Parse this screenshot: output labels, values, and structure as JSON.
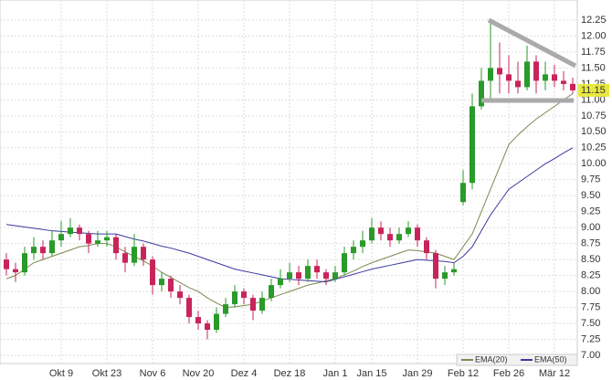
{
  "chart_data": {
    "type": "candlestick",
    "xticks": [
      {
        "value": 6,
        "label": "Okt 9"
      },
      {
        "value": 11,
        "label": "Okt 23"
      },
      {
        "value": 16,
        "label": "Nov 6"
      },
      {
        "value": 21,
        "label": "Nov 20"
      },
      {
        "value": 26,
        "label": "Dez 4"
      },
      {
        "value": 31,
        "label": "Dez 18"
      },
      {
        "value": 36,
        "label": "Jan 1"
      },
      {
        "value": 40,
        "label": "Jan 15"
      },
      {
        "value": 45,
        "label": "Jan 29"
      },
      {
        "value": 50,
        "label": "Feb 12"
      },
      {
        "value": 55,
        "label": "Feb 26"
      },
      {
        "value": 60,
        "label": "Mär 12"
      }
    ],
    "ylim": [
      7,
      12.5
    ],
    "yticks": [
      {
        "value": 7,
        "label": "7.00"
      },
      7.25,
      {
        "value": 7.5,
        "label": "7.50"
      },
      7.75,
      {
        "value": 8,
        "label": "8.00"
      },
      8.25,
      {
        "value": 8.5,
        "label": "8.50"
      },
      8.75,
      {
        "value": 9,
        "label": "9.00"
      },
      9.25,
      {
        "value": 9.5,
        "label": "9.50"
      },
      9.75,
      {
        "value": 10,
        "label": "10.00"
      },
      10.25,
      {
        "value": 10.5,
        "label": "10.50"
      },
      10.75,
      {
        "value": 11,
        "label": "11.00"
      },
      11.25,
      {
        "value": 11.5,
        "label": "11.50"
      },
      11.75,
      {
        "value": 12,
        "label": "12.00"
      },
      12.25
    ],
    "grid": true,
    "up_color": "#2a9a2a",
    "down_color": "#c8245a",
    "ohlc": [
      [
        8.5,
        8.6,
        8.25,
        8.35
      ],
      [
        8.35,
        8.45,
        8.15,
        8.3
      ],
      [
        8.3,
        8.7,
        8.25,
        8.6
      ],
      [
        8.6,
        8.85,
        8.5,
        8.7
      ],
      [
        8.7,
        8.8,
        8.5,
        8.6
      ],
      [
        8.6,
        8.95,
        8.55,
        8.8
      ],
      [
        8.8,
        9.1,
        8.7,
        8.9
      ],
      [
        8.9,
        9.15,
        8.85,
        9.0
      ],
      [
        9.0,
        9.05,
        8.8,
        8.9
      ],
      [
        8.9,
        8.95,
        8.6,
        8.75
      ],
      [
        8.75,
        8.95,
        8.7,
        8.8
      ],
      [
        8.8,
        8.95,
        8.7,
        8.85
      ],
      [
        8.85,
        8.9,
        8.5,
        8.6
      ],
      [
        8.6,
        8.7,
        8.3,
        8.45
      ],
      [
        8.45,
        8.9,
        8.4,
        8.7
      ],
      [
        8.7,
        8.75,
        8.4,
        8.5
      ],
      [
        8.5,
        8.55,
        7.95,
        8.1
      ],
      [
        8.1,
        8.3,
        8.0,
        8.2
      ],
      [
        8.2,
        8.25,
        7.9,
        8.0
      ],
      [
        8.0,
        8.1,
        7.8,
        7.9
      ],
      [
        7.9,
        7.95,
        7.5,
        7.6
      ],
      [
        7.6,
        7.7,
        7.4,
        7.5
      ],
      [
        7.5,
        7.55,
        7.25,
        7.4
      ],
      [
        7.4,
        7.75,
        7.35,
        7.65
      ],
      [
        7.65,
        7.9,
        7.6,
        7.8
      ],
      [
        7.8,
        8.1,
        7.75,
        8.0
      ],
      [
        8.0,
        8.05,
        7.8,
        7.9
      ],
      [
        7.9,
        7.95,
        7.55,
        7.7
      ],
      [
        7.7,
        8.0,
        7.65,
        7.9
      ],
      [
        7.9,
        8.2,
        7.85,
        8.1
      ],
      [
        8.1,
        8.35,
        8.05,
        8.2
      ],
      [
        8.2,
        8.45,
        8.15,
        8.3
      ],
      [
        8.3,
        8.4,
        8.1,
        8.2
      ],
      [
        8.2,
        8.5,
        8.15,
        8.4
      ],
      [
        8.4,
        8.5,
        8.2,
        8.3
      ],
      [
        8.3,
        8.35,
        8.1,
        8.2
      ],
      [
        8.2,
        8.4,
        8.15,
        8.3
      ],
      [
        8.3,
        8.7,
        8.25,
        8.6
      ],
      [
        8.6,
        8.8,
        8.5,
        8.7
      ],
      [
        8.7,
        8.95,
        8.6,
        8.8
      ],
      [
        8.8,
        9.15,
        8.75,
        9.0
      ],
      [
        9.0,
        9.1,
        8.8,
        8.9
      ],
      [
        8.9,
        9.0,
        8.7,
        8.8
      ],
      [
        8.8,
        9.0,
        8.75,
        8.9
      ],
      [
        8.9,
        9.1,
        8.85,
        9.0
      ],
      [
        9.0,
        9.05,
        8.7,
        8.8
      ],
      [
        8.8,
        8.85,
        8.5,
        8.6
      ],
      [
        8.6,
        8.65,
        8.05,
        8.2
      ],
      [
        8.2,
        8.4,
        8.1,
        8.3
      ],
      [
        8.3,
        8.45,
        8.25,
        8.35
      ],
      [
        9.4,
        9.9,
        9.35,
        9.7
      ],
      [
        9.7,
        11.1,
        9.6,
        10.9
      ],
      [
        10.9,
        11.5,
        10.85,
        11.3
      ],
      [
        11.3,
        12.25,
        11.0,
        11.5
      ],
      [
        11.5,
        11.9,
        11.1,
        11.4
      ],
      [
        11.4,
        11.7,
        11.1,
        11.3
      ],
      [
        11.3,
        11.6,
        11.1,
        11.2
      ],
      [
        11.2,
        11.85,
        11.15,
        11.6
      ],
      [
        11.6,
        11.7,
        11.1,
        11.3
      ],
      [
        11.3,
        11.6,
        11.15,
        11.4
      ],
      [
        11.4,
        11.55,
        11.2,
        11.3
      ],
      [
        11.3,
        11.45,
        11.15,
        11.25
      ],
      [
        11.25,
        11.35,
        11.1,
        11.15
      ]
    ],
    "series": [
      {
        "name": "EMA(20)",
        "color": "#7a8a50",
        "values": [
          8.2,
          8.25,
          8.35,
          8.45,
          8.5,
          8.55,
          8.6,
          8.65,
          8.7,
          8.72,
          8.75,
          8.75,
          8.7,
          8.62,
          8.55,
          8.48,
          8.4,
          8.3,
          8.22,
          8.14,
          8.06,
          8.0,
          7.9,
          7.82,
          7.75,
          7.76,
          7.78,
          7.8,
          7.85,
          7.9,
          7.95,
          8.0,
          8.05,
          8.1,
          8.13,
          8.17,
          8.2,
          8.26,
          8.32,
          8.39,
          8.45,
          8.5,
          8.55,
          8.6,
          8.65,
          8.64,
          8.62,
          8.6,
          8.55,
          8.5,
          8.7,
          8.9,
          9.25,
          9.6,
          9.95,
          10.3,
          10.45,
          10.58,
          10.7,
          10.8,
          10.9,
          11.0,
          11.1
        ]
      },
      {
        "name": "EMA(50)",
        "color": "#3a3aa0",
        "values": [
          9.05,
          9.03,
          9.01,
          8.99,
          8.97,
          8.95,
          8.94,
          8.93,
          8.92,
          8.91,
          8.9,
          8.9,
          8.9,
          8.86,
          8.82,
          8.79,
          8.75,
          8.71,
          8.68,
          8.64,
          8.6,
          8.55,
          8.5,
          8.45,
          8.4,
          8.35,
          8.32,
          8.29,
          8.26,
          8.23,
          8.2,
          8.19,
          8.18,
          8.17,
          8.16,
          8.15,
          8.19,
          8.23,
          8.27,
          8.31,
          8.35,
          8.38,
          8.41,
          8.44,
          8.47,
          8.5,
          8.49,
          8.48,
          8.47,
          8.45,
          8.55,
          8.7,
          8.95,
          9.2,
          9.4,
          9.6,
          9.7,
          9.8,
          9.9,
          10.0,
          10.08,
          10.17,
          10.25
        ]
      }
    ],
    "last_value": 11.15
  }
}
